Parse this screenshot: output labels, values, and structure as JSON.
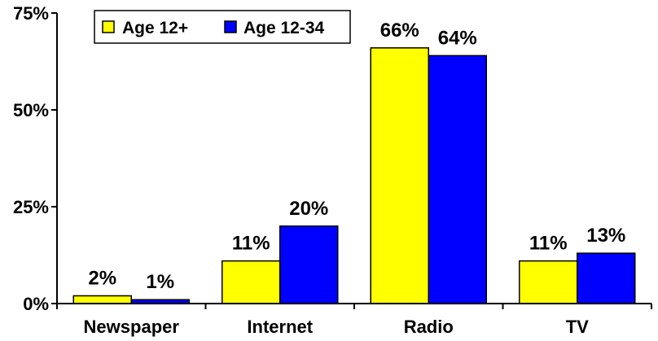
{
  "chart_data": {
    "type": "bar",
    "title": "",
    "xlabel": "",
    "ylabel": "",
    "categories": [
      "Newspaper",
      "Internet",
      "Radio",
      "TV"
    ],
    "series": [
      {
        "name": "Age 12+",
        "color": "#ffff00",
        "values": [
          2,
          11,
          66,
          11
        ],
        "labels": [
          "2%",
          "11%",
          "66%",
          "11%"
        ]
      },
      {
        "name": "Age 12-34",
        "color": "#0000ff",
        "values": [
          1,
          20,
          64,
          13
        ],
        "labels": [
          "1%",
          "20%",
          "64%",
          "13%"
        ]
      }
    ],
    "ylim": [
      0,
      75
    ],
    "yticks": [
      0,
      25,
      50,
      75
    ],
    "ytick_labels": [
      "0%",
      "25%",
      "50%",
      "75%"
    ],
    "grid": false,
    "legend_position": "top-left"
  }
}
